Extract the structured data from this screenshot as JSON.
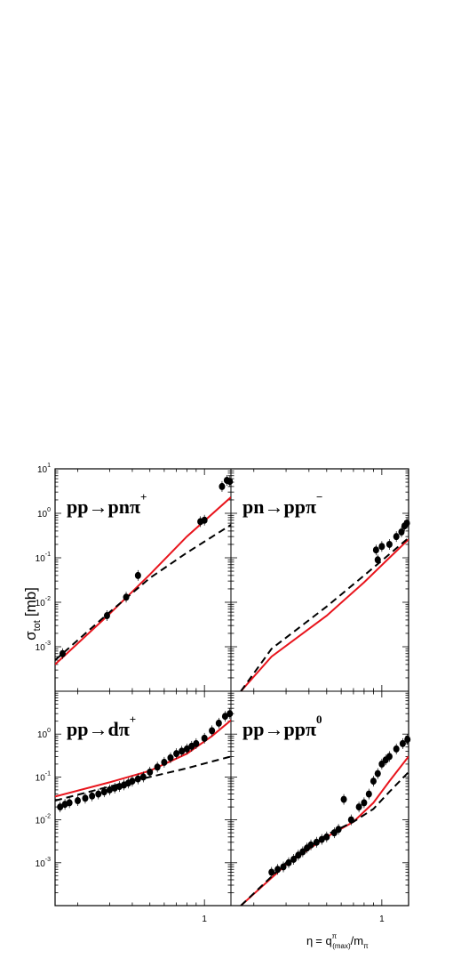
{
  "colors": {
    "theory_solid": "#e8141c",
    "theory_dashed": "#000000",
    "data": "#000000",
    "frame": "#000000",
    "background": "#ffffff"
  },
  "y_axis": {
    "symbol": "σ",
    "subscript": "tot",
    "unit": "[mb]",
    "tick_labels": [
      "10",
      "10",
      "10",
      "10",
      "10"
    ],
    "tick_exponents": [
      "1",
      "0",
      "-1",
      "-2",
      "-3"
    ]
  },
  "x_axis": {
    "eta": "η",
    "equals": "= q",
    "sup": "π",
    "sub": "(max)",
    "slash": "/m",
    "sub2": "π",
    "tick_label": "1"
  },
  "chart_data": [
    {
      "type": "scatter",
      "title": "pp→pnπ+",
      "label_main": "pp→pnπ",
      "label_sup": "+",
      "xscale": "log",
      "yscale": "log",
      "xlim": [
        0.15,
        1.4
      ],
      "ylim": [
        0.0001,
        10
      ],
      "series": [
        {
          "kind": "data",
          "x": [
            0.165,
            0.29,
            0.37,
            0.43,
            0.95,
            1.0,
            1.25,
            1.33,
            1.38
          ],
          "y": [
            0.0007,
            0.005,
            0.013,
            0.04,
            0.65,
            0.7,
            4.0,
            5.5,
            5.2
          ]
        },
        {
          "kind": "solid",
          "x": [
            0.15,
            0.3,
            0.5,
            0.8,
            1.4
          ],
          "y": [
            0.0004,
            0.0055,
            0.042,
            0.3,
            2.3
          ]
        },
        {
          "kind": "dashed",
          "x": [
            0.15,
            0.3,
            0.5,
            0.8,
            1.4
          ],
          "y": [
            0.0005,
            0.006,
            0.035,
            0.13,
            0.55
          ]
        }
      ]
    },
    {
      "type": "scatter",
      "title": "pn→ppπ-",
      "label_main": "pn→ppπ",
      "label_sup": "−",
      "xscale": "log",
      "yscale": "log",
      "xlim": [
        0.15,
        1.4
      ],
      "ylim": [
        0.0001,
        10
      ],
      "series": [
        {
          "kind": "data",
          "x": [
            0.93,
            0.95,
            1.0,
            1.1,
            1.2,
            1.28,
            1.33,
            1.37
          ],
          "y": [
            0.15,
            0.09,
            0.18,
            0.2,
            0.3,
            0.38,
            0.52,
            0.6
          ]
        },
        {
          "kind": "solid",
          "x": [
            0.17,
            0.25,
            0.5,
            0.8,
            1.1,
            1.4
          ],
          "y": [
            0.0001,
            0.0006,
            0.005,
            0.028,
            0.1,
            0.26
          ]
        },
        {
          "kind": "dashed",
          "x": [
            0.17,
            0.25,
            0.5,
            0.8,
            1.1,
            1.4
          ],
          "y": [
            0.0001,
            0.0009,
            0.008,
            0.04,
            0.12,
            0.28
          ]
        }
      ]
    },
    {
      "type": "scatter",
      "title": "pp→dπ+",
      "label_main": "pp→dπ",
      "label_sup": "+",
      "xscale": "log",
      "yscale": "log",
      "xlim": [
        0.15,
        1.4
      ],
      "ylim": [
        0.0001,
        10
      ],
      "series": [
        {
          "kind": "data",
          "x": [
            0.16,
            0.17,
            0.18,
            0.2,
            0.22,
            0.24,
            0.26,
            0.28,
            0.3,
            0.32,
            0.34,
            0.36,
            0.38,
            0.4,
            0.43,
            0.46,
            0.5,
            0.55,
            0.6,
            0.65,
            0.7,
            0.75,
            0.8,
            0.85,
            0.9,
            1.0,
            1.1,
            1.2,
            1.3,
            1.38
          ],
          "y": [
            0.02,
            0.023,
            0.025,
            0.028,
            0.032,
            0.036,
            0.04,
            0.045,
            0.05,
            0.055,
            0.06,
            0.065,
            0.072,
            0.08,
            0.09,
            0.1,
            0.13,
            0.17,
            0.22,
            0.28,
            0.35,
            0.4,
            0.45,
            0.52,
            0.6,
            0.8,
            1.2,
            1.8,
            2.6,
            3.0
          ]
        },
        {
          "kind": "solid",
          "x": [
            0.15,
            0.3,
            0.5,
            0.8,
            1.1,
            1.4
          ],
          "y": [
            0.035,
            0.075,
            0.14,
            0.35,
            0.9,
            2.1
          ]
        },
        {
          "kind": "dashed",
          "x": [
            0.15,
            0.3,
            0.5,
            0.8,
            1.1,
            1.4
          ],
          "y": [
            0.028,
            0.06,
            0.1,
            0.16,
            0.23,
            0.3
          ]
        }
      ]
    },
    {
      "type": "scatter",
      "title": "pp→ppπ0",
      "label_main": "pp→ppπ",
      "label_sup": "0",
      "xscale": "log",
      "yscale": "log",
      "xlim": [
        0.15,
        1.4
      ],
      "ylim": [
        0.0001,
        10
      ],
      "series": [
        {
          "kind": "data",
          "x": [
            0.25,
            0.27,
            0.29,
            0.31,
            0.33,
            0.35,
            0.37,
            0.39,
            0.41,
            0.44,
            0.47,
            0.5,
            0.55,
            0.58,
            0.62,
            0.68,
            0.75,
            0.8,
            0.85,
            0.9,
            0.95,
            1.0,
            1.05,
            1.1,
            1.2,
            1.3,
            1.38
          ],
          "y": [
            0.0006,
            0.0007,
            0.0008,
            0.001,
            0.0012,
            0.0015,
            0.0018,
            0.0022,
            0.0026,
            0.003,
            0.0035,
            0.004,
            0.005,
            0.006,
            0.03,
            0.01,
            0.02,
            0.025,
            0.04,
            0.08,
            0.12,
            0.2,
            0.25,
            0.3,
            0.45,
            0.6,
            0.75
          ]
        },
        {
          "kind": "solid",
          "x": [
            0.17,
            0.3,
            0.5,
            0.7,
            0.9,
            1.1,
            1.4
          ],
          "y": [
            0.0001,
            0.0009,
            0.004,
            0.009,
            0.025,
            0.08,
            0.3
          ]
        },
        {
          "kind": "dashed",
          "x": [
            0.17,
            0.3,
            0.5,
            0.7,
            0.9,
            1.1,
            1.4
          ],
          "y": [
            0.0001,
            0.001,
            0.0045,
            0.009,
            0.018,
            0.045,
            0.13
          ]
        }
      ]
    }
  ]
}
